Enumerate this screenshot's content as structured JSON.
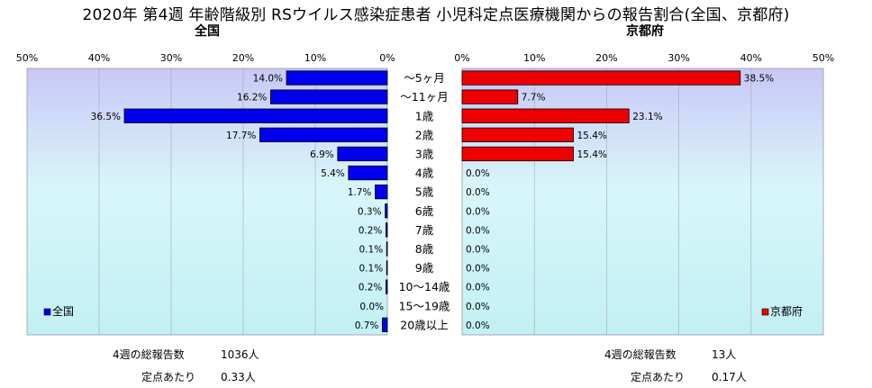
{
  "title": "2020年 第4週 年齢階級別 RSウイルス感染症患者 小児科定点医療機関からの報告割合(全国、京都府)",
  "colors": {
    "national": "#0000ee",
    "kyoto": "#ee0000"
  },
  "chart_data": [
    {
      "type": "bar",
      "orientation": "horizontal",
      "direction": "right-to-left",
      "title": "全国",
      "legend": "全国",
      "legend_position": "bottom-left",
      "xlim": [
        0,
        50
      ],
      "x_ticks": [
        "50%",
        "40%",
        "30%",
        "20%",
        "10%",
        "0%"
      ],
      "categories": [
        "～5ヶ月",
        "～11ヶ月",
        "1歳",
        "2歳",
        "3歳",
        "4歳",
        "5歳",
        "6歳",
        "7歳",
        "8歳",
        "9歳",
        "10～14歳",
        "15～19歳",
        "20歳以上"
      ],
      "values": [
        14.0,
        16.2,
        36.5,
        17.7,
        6.9,
        5.4,
        1.7,
        0.3,
        0.2,
        0.1,
        0.1,
        0.2,
        0.0,
        0.7
      ],
      "labels": [
        "14.0%",
        "16.2%",
        "36.5%",
        "17.7%",
        "6.9%",
        "5.4%",
        "1.7%",
        "0.3%",
        "0.2%",
        "0.1%",
        "0.1%",
        "0.2%",
        "0.0%",
        "0.7%"
      ],
      "grid": true
    },
    {
      "type": "bar",
      "orientation": "horizontal",
      "direction": "left-to-right",
      "title": "京都府",
      "legend": "京都府",
      "legend_position": "bottom-right",
      "xlim": [
        0,
        50
      ],
      "x_ticks": [
        "0%",
        "10%",
        "20%",
        "30%",
        "40%",
        "50%"
      ],
      "categories": [
        "～5ヶ月",
        "～11ヶ月",
        "1歳",
        "2歳",
        "3歳",
        "4歳",
        "5歳",
        "6歳",
        "7歳",
        "8歳",
        "9歳",
        "10～14歳",
        "15～19歳",
        "20歳以上"
      ],
      "values": [
        38.5,
        7.7,
        23.1,
        15.4,
        15.4,
        0.0,
        0.0,
        0.0,
        0.0,
        0.0,
        0.0,
        0.0,
        0.0,
        0.0
      ],
      "labels": [
        "38.5%",
        "7.7%",
        "23.1%",
        "15.4%",
        "15.4%",
        "0.0%",
        "0.0%",
        "0.0%",
        "0.0%",
        "0.0%",
        "0.0%",
        "0.0%",
        "0.0%",
        "0.0%"
      ],
      "grid": true
    }
  ],
  "footer": {
    "national": {
      "total_label": "4週の総報告数",
      "total_value": "1036人",
      "per_label": "定点あたり",
      "per_value": "0.33人"
    },
    "kyoto": {
      "total_label": "4週の総報告数",
      "total_value": "13人",
      "per_label": "定点あたり",
      "per_value": "0.17人"
    }
  }
}
